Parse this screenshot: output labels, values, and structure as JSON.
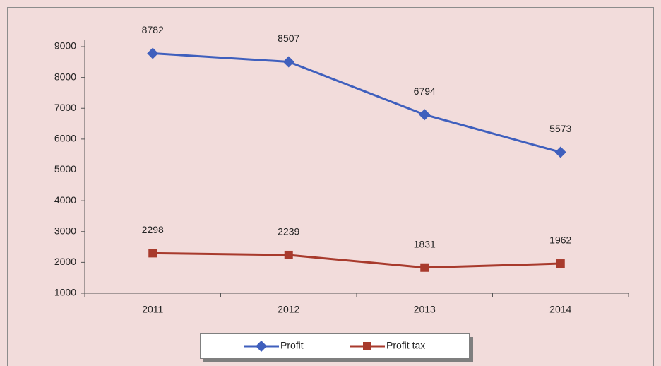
{
  "chart_data": {
    "type": "line",
    "categories": [
      "2011",
      "2012",
      "2013",
      "2014"
    ],
    "series": [
      {
        "name": "Profit",
        "color": "#3f5fbd",
        "marker": "diamond",
        "values": [
          8782,
          8507,
          6794,
          5573
        ]
      },
      {
        "name": "Profit tax",
        "color": "#a83a2c",
        "marker": "square",
        "values": [
          2298,
          2239,
          1831,
          1962
        ]
      }
    ],
    "ylim": [
      1000,
      9000
    ],
    "yticks": [
      1000,
      2000,
      3000,
      4000,
      5000,
      6000,
      7000,
      8000,
      9000
    ],
    "grid": false,
    "legend": "bottom"
  }
}
